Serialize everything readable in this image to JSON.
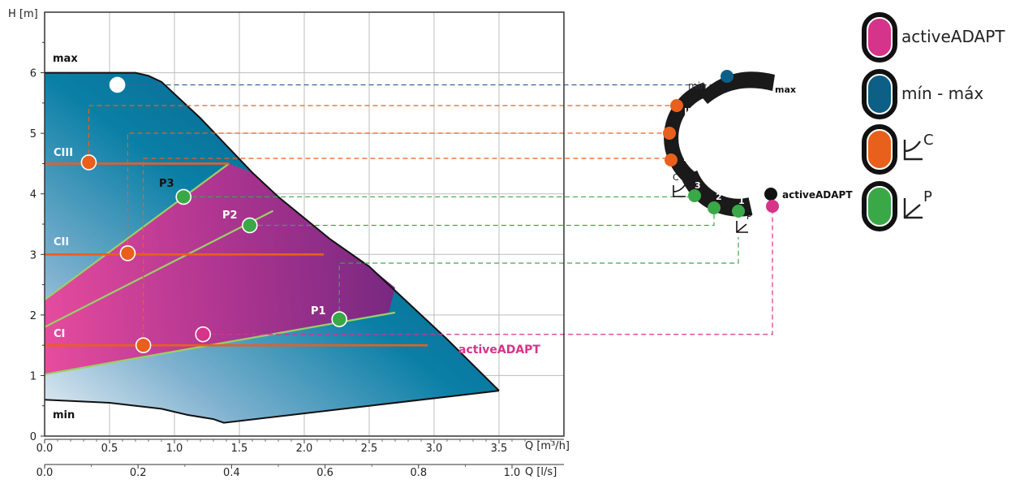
{
  "chart_data": {
    "type": "area",
    "axes": {
      "x_primary": {
        "label": "Q [m³/h]",
        "range": [
          0,
          4.0
        ],
        "ticks": [
          0.0,
          0.5,
          1.0,
          1.5,
          2.0,
          2.5,
          3.0,
          3.5
        ],
        "tick_labels": [
          "0.0",
          "0.5",
          "1.0",
          "1.5",
          "2.0",
          "2.5",
          "3.0",
          "3.5"
        ]
      },
      "x_secondary": {
        "label": "Q [l/s]",
        "ticks_m3h": [
          0,
          0.72,
          1.44,
          2.16,
          2.88,
          3.6
        ],
        "tick_labels": [
          "0.0",
          "0.2",
          "0.4",
          "0.6",
          "0.8",
          "1.0"
        ]
      },
      "y": {
        "label": "H [m]",
        "range": [
          0,
          7.0
        ],
        "ticks": [
          0,
          1,
          2,
          3,
          4,
          5,
          6
        ],
        "tick_labels": [
          "0",
          "1",
          "2",
          "3",
          "4",
          "5",
          "6"
        ]
      },
      "grid": true
    },
    "envelope": {
      "max_curve": [
        [
          0,
          6.0
        ],
        [
          0.7,
          6.0
        ],
        [
          0.8,
          5.95
        ],
        [
          0.9,
          5.85
        ],
        [
          1.0,
          5.65
        ],
        [
          1.2,
          5.25
        ],
        [
          1.4,
          4.8
        ],
        [
          1.6,
          4.35
        ],
        [
          1.8,
          3.95
        ],
        [
          2.0,
          3.6
        ],
        [
          2.2,
          3.25
        ],
        [
          2.5,
          2.8
        ],
        [
          2.8,
          2.2
        ],
        [
          3.1,
          1.6
        ],
        [
          3.5,
          0.75
        ]
      ],
      "min_curve": [
        [
          0,
          0.6
        ],
        [
          0.5,
          0.55
        ],
        [
          0.9,
          0.45
        ],
        [
          1.1,
          0.35
        ],
        [
          1.3,
          0.28
        ],
        [
          1.38,
          0.22
        ],
        [
          3.5,
          0.75
        ]
      ]
    },
    "active_adapt_region": [
      [
        0,
        1.02
      ],
      [
        0,
        2.25
      ],
      [
        1.42,
        4.5
      ],
      [
        1.6,
        4.35
      ],
      [
        1.8,
        3.95
      ],
      [
        2.0,
        3.6
      ],
      [
        2.2,
        3.25
      ],
      [
        2.5,
        2.8
      ],
      [
        2.7,
        2.45
      ],
      [
        2.65,
        2.04
      ]
    ],
    "constant_pressure_lines": [
      {
        "name": "CI",
        "h": 1.5,
        "x_end": 2.95
      },
      {
        "name": "CII",
        "h": 3.0,
        "x_end": 2.15
      },
      {
        "name": "CIII",
        "h": 4.5,
        "x_end": 1.42
      }
    ],
    "proportional_lines": [
      {
        "name": "P1",
        "from": [
          0,
          1.02
        ],
        "to": [
          2.7,
          2.04
        ]
      },
      {
        "name": "P2",
        "from": [
          0,
          1.8
        ],
        "to": [
          1.76,
          3.72
        ]
      },
      {
        "name": "P3",
        "from": [
          0,
          2.25
        ],
        "to": [
          1.42,
          4.5
        ]
      }
    ],
    "labels": {
      "max": "max",
      "min": "min",
      "CI": "CI",
      "CII": "CII",
      "CIII": "CIII",
      "P1": "P1",
      "P2": "P2",
      "P3": "P3",
      "activeADAPT": "activeADAPT"
    },
    "operating_points": [
      {
        "mode": "min-max",
        "x": 0.56,
        "y": 5.8,
        "color": "#ffffff"
      },
      {
        "mode": "CIII",
        "x": 0.34,
        "y": 4.52,
        "color": "#e8601c"
      },
      {
        "mode": "CII",
        "x": 0.64,
        "y": 3.02,
        "color": "#e8601c"
      },
      {
        "mode": "CI",
        "x": 0.76,
        "y": 1.5,
        "color": "#e8601c"
      },
      {
        "mode": "P3",
        "x": 1.07,
        "y": 3.95,
        "color": "#3aa847"
      },
      {
        "mode": "P2",
        "x": 1.58,
        "y": 3.48,
        "color": "#3aa847"
      },
      {
        "mode": "P1",
        "x": 2.27,
        "y": 1.93,
        "color": "#3aa847"
      },
      {
        "mode": "activeADAPT",
        "x": 1.22,
        "y": 1.68,
        "color": "#d6338a"
      }
    ]
  },
  "dial": {
    "label_min": "min",
    "label_max": "max",
    "label_active": "activeADAPT",
    "c_segments": [
      "III",
      "II",
      "I"
    ],
    "p_segments": [
      "3",
      "2",
      "1"
    ],
    "c_symbol": "C",
    "p_symbol": "P"
  },
  "legend": [
    {
      "label": "activeADAPT",
      "color": "#d6338a",
      "icon": "pill-icon"
    },
    {
      "label": "mín - máx",
      "color": "#0e6b8f",
      "icon": "pill-icon"
    },
    {
      "label": "C",
      "color": "#e8601c",
      "icon": "constant-pressure-icon"
    },
    {
      "label": "P",
      "color": "#3aa847",
      "icon": "proportional-pressure-icon"
    }
  ],
  "colors": {
    "blue_dark": "#0e5f86",
    "blue_light": "#d8e6ef",
    "magenta_dark": "#8e2a84",
    "magenta_light": "#e0449a",
    "orange": "#e8601c",
    "green_line": "#9bcf65",
    "green_point": "#3aa847",
    "pink": "#d6338a",
    "navy_dash": "#3f5f9a"
  }
}
